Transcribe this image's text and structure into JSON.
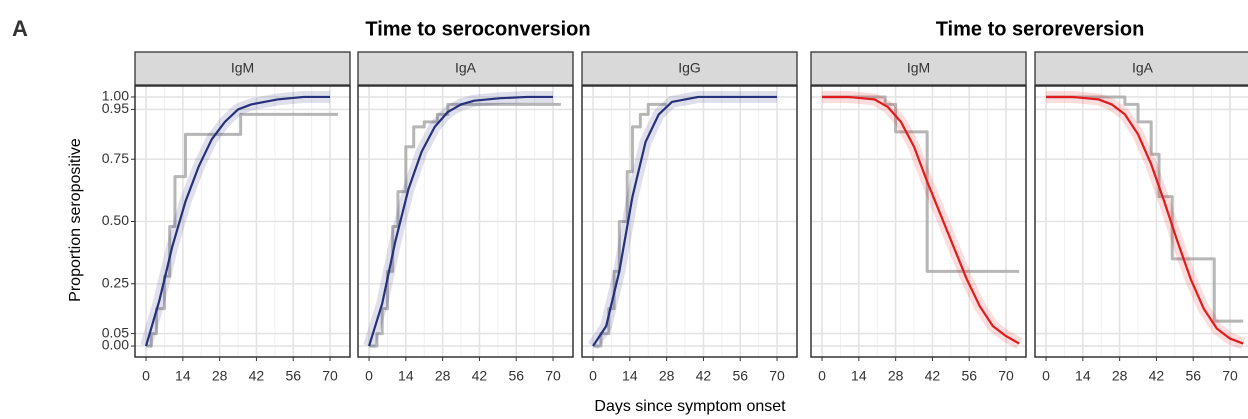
{
  "figure": {
    "label": "A",
    "titles": [
      "Time to seroconversion",
      "Time to seroreversion"
    ],
    "xlabel": "Days since symptom onset",
    "ylabel": "Proportion seropositive"
  },
  "chart_data": [
    {
      "type": "line",
      "title": "IgM",
      "xlim": [
        -4.2,
        77.6
      ],
      "ylim": [
        -0.044,
        1.044
      ],
      "xticks": [
        0,
        14,
        28,
        42,
        56,
        70
      ],
      "yticks": [
        {
          "value": 0,
          "label": "0.00"
        },
        {
          "value": 0.05,
          "label": "0.05"
        },
        {
          "value": 0.25,
          "label": "0.25"
        },
        {
          "value": 0.5,
          "label": "0.50"
        },
        {
          "value": 0.75,
          "label": "0.75"
        },
        {
          "value": 0.95,
          "label": "0.95"
        },
        {
          "value": 1,
          "label": "1.00"
        }
      ],
      "series": [
        {
          "color": "#a9a9a9",
          "shape": "step",
          "x": [
            0,
            2,
            4,
            7,
            9,
            11,
            15,
            36,
            73
          ],
          "values": [
            0,
            0.05,
            0.15,
            0.28,
            0.48,
            0.68,
            0.85,
            0.93,
            0.93
          ]
        },
        {
          "color": "#27307a",
          "shape": "curve",
          "x": [
            0,
            5,
            10,
            15,
            20,
            25,
            30,
            35,
            40,
            50,
            60,
            70
          ],
          "values": [
            0,
            0.18,
            0.4,
            0.58,
            0.72,
            0.83,
            0.9,
            0.95,
            0.97,
            0.99,
            1,
            1
          ]
        }
      ]
    },
    {
      "type": "line",
      "title": "IgA",
      "xlim": [
        -4.2,
        77.6
      ],
      "ylim": [
        -0.044,
        1.044
      ],
      "xticks": [
        0,
        14,
        28,
        42,
        56,
        70
      ],
      "series": [
        {
          "color": "#a9a9a9",
          "shape": "step",
          "x": [
            0,
            3,
            5,
            7,
            9,
            11,
            14,
            17,
            21,
            26,
            30,
            73
          ],
          "values": [
            0,
            0.05,
            0.15,
            0.3,
            0.48,
            0.62,
            0.8,
            0.88,
            0.9,
            0.93,
            0.97,
            0.97
          ]
        },
        {
          "color": "#27307a",
          "shape": "curve",
          "x": [
            0,
            5,
            10,
            15,
            20,
            25,
            30,
            35,
            40,
            50,
            60,
            70
          ],
          "values": [
            0,
            0.17,
            0.42,
            0.63,
            0.78,
            0.88,
            0.94,
            0.97,
            0.985,
            0.995,
            1,
            1
          ]
        }
      ]
    },
    {
      "type": "line",
      "title": "IgG",
      "xlim": [
        -4.2,
        77.6
      ],
      "ylim": [
        -0.044,
        1.044
      ],
      "xticks": [
        0,
        14,
        28,
        42,
        56,
        70
      ],
      "series": [
        {
          "color": "#a9a9a9",
          "shape": "step",
          "x": [
            0,
            3,
            6,
            8,
            10,
            13,
            15,
            18,
            21,
            28
          ],
          "values": [
            0,
            0.05,
            0.15,
            0.3,
            0.5,
            0.7,
            0.88,
            0.93,
            0.97,
            0.97
          ]
        },
        {
          "color": "#27307a",
          "shape": "curve",
          "x": [
            0,
            5,
            10,
            15,
            20,
            25,
            30,
            35,
            40,
            50,
            60,
            70
          ],
          "values": [
            0,
            0.08,
            0.3,
            0.6,
            0.82,
            0.93,
            0.98,
            0.99,
            1,
            1,
            1,
            1
          ]
        }
      ]
    },
    {
      "type": "line",
      "title": "IgM",
      "xlim": [
        -4.2,
        77.6
      ],
      "ylim": [
        -0.044,
        1.044
      ],
      "xticks": [
        0,
        14,
        28,
        42,
        56,
        70
      ],
      "series": [
        {
          "color": "#a9a9a9",
          "shape": "step",
          "x": [
            0,
            24,
            28,
            40,
            75
          ],
          "values": [
            1,
            0.97,
            0.86,
            0.3,
            0.3
          ]
        },
        {
          "color": "#e31a1c",
          "shape": "curve",
          "x": [
            0,
            10,
            20,
            25,
            30,
            35,
            40,
            45,
            50,
            55,
            60,
            65,
            70,
            75
          ],
          "values": [
            1,
            1,
            0.99,
            0.96,
            0.9,
            0.8,
            0.66,
            0.53,
            0.4,
            0.27,
            0.16,
            0.08,
            0.04,
            0.01
          ]
        }
      ]
    },
    {
      "type": "line",
      "title": "IgA",
      "xlim": [
        -4.2,
        77.6
      ],
      "ylim": [
        -0.044,
        1.044
      ],
      "xticks": [
        0,
        14,
        28,
        42,
        56,
        70
      ],
      "series": [
        {
          "color": "#a9a9a9",
          "shape": "step",
          "x": [
            0,
            25,
            30,
            35,
            40,
            43,
            48,
            64,
            75
          ],
          "values": [
            1,
            1,
            0.97,
            0.9,
            0.77,
            0.6,
            0.35,
            0.1,
            0.1
          ]
        },
        {
          "color": "#e31a1c",
          "shape": "curve",
          "x": [
            0,
            10,
            20,
            25,
            30,
            35,
            40,
            45,
            50,
            55,
            60,
            65,
            70,
            75
          ],
          "values": [
            1,
            1,
            0.99,
            0.97,
            0.93,
            0.85,
            0.73,
            0.58,
            0.42,
            0.27,
            0.15,
            0.07,
            0.03,
            0.01
          ]
        }
      ]
    }
  ]
}
